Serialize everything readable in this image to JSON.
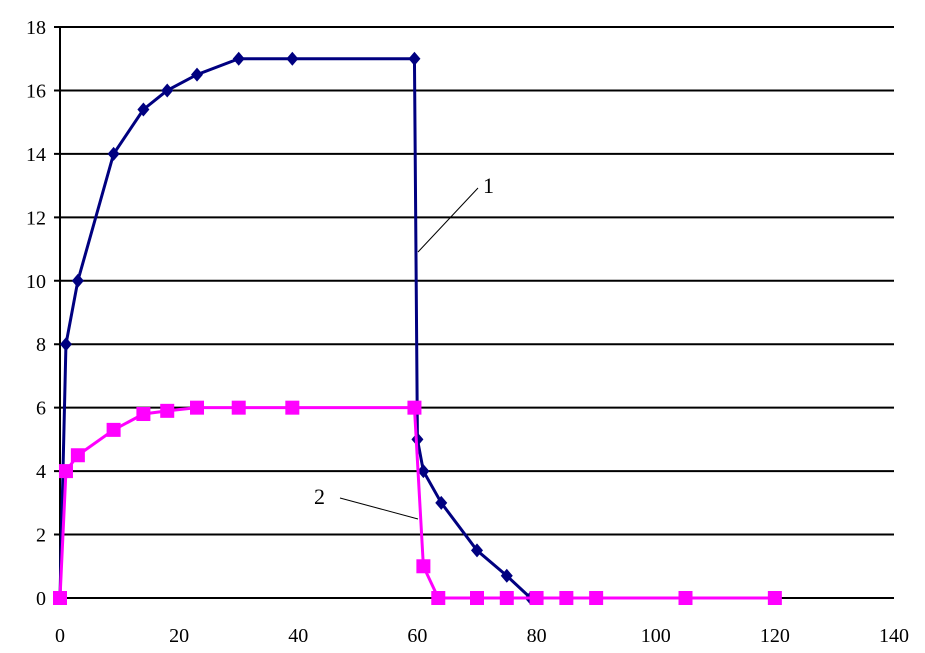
{
  "chart_data": {
    "type": "line",
    "title": "",
    "xlabel": "",
    "ylabel": "",
    "xlim": [
      0,
      140
    ],
    "ylim": [
      0,
      18
    ],
    "xticks": [
      "0",
      "20",
      "40",
      "60",
      "80",
      "100",
      "120",
      "140"
    ],
    "yticks": [
      "0",
      "2",
      "4",
      "6",
      "8",
      "10",
      "12",
      "14",
      "16",
      "18"
    ],
    "grid": "horizontal",
    "legend": "none",
    "series": [
      {
        "name": "1",
        "color": "#000080",
        "marker": "diamond",
        "x": [
          0,
          1,
          3,
          9,
          14,
          18,
          23,
          30,
          39,
          59.5,
          60,
          61,
          64,
          70,
          75,
          79
        ],
        "y": [
          0,
          8,
          10,
          14,
          15.4,
          16,
          16.5,
          17,
          17,
          17,
          5,
          4,
          3,
          1.5,
          0.7,
          0
        ]
      },
      {
        "name": "2",
        "color": "#FF00FF",
        "marker": "square",
        "x": [
          0,
          1,
          3,
          9,
          14,
          18,
          23,
          30,
          39,
          59.5,
          61,
          63.5,
          70,
          75,
          80,
          85,
          90,
          105,
          120
        ],
        "y": [
          0,
          4,
          4.5,
          5.3,
          5.8,
          5.9,
          6,
          6,
          6,
          6,
          1,
          0,
          0,
          0,
          0,
          0,
          0,
          0,
          0
        ]
      }
    ],
    "annotations": [
      {
        "text": "1",
        "target_series": "1"
      },
      {
        "text": "2",
        "target_series": "2"
      }
    ]
  }
}
